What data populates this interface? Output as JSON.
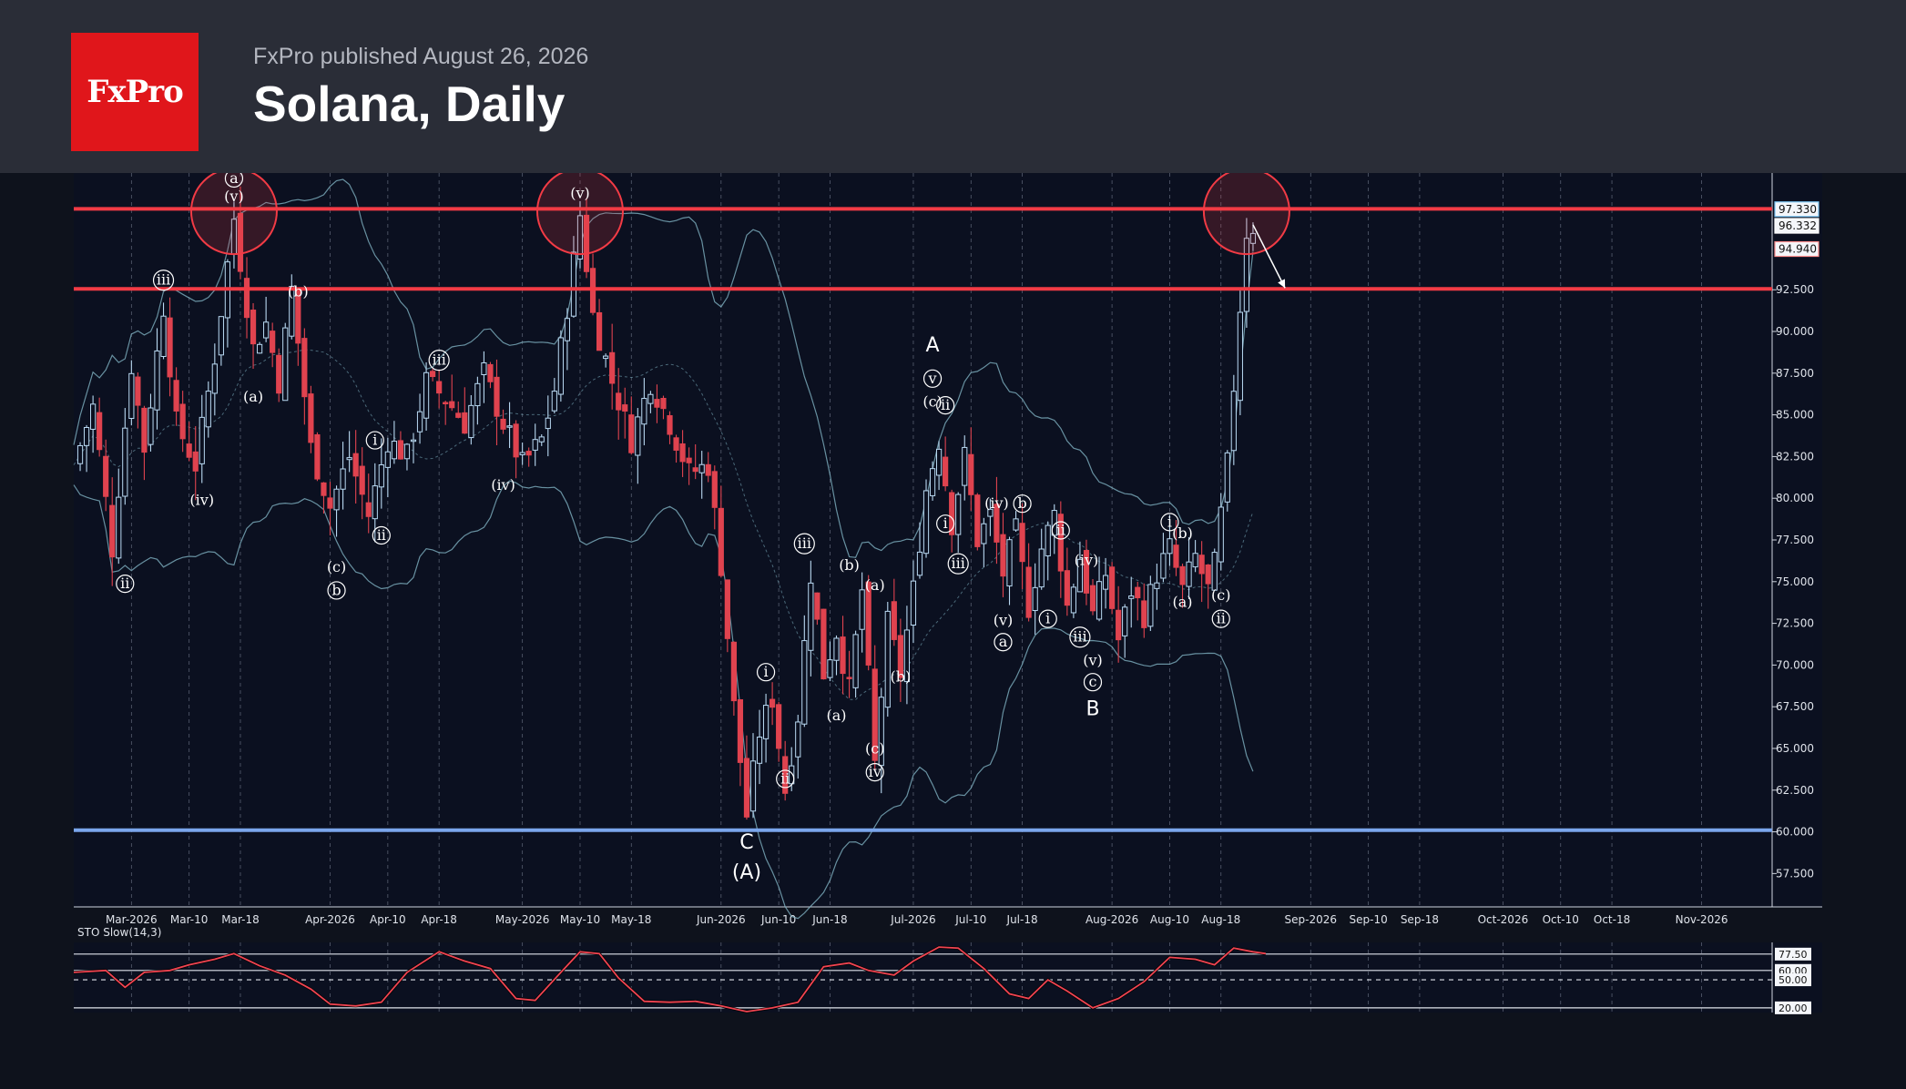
{
  "header": {
    "logo_text": "FxPro",
    "published": "FxPro published August 26, 2026",
    "title": "Solana, Daily"
  },
  "chart_data": [
    {
      "type": "candlestick",
      "title": "Solana, Daily",
      "ylim": [
        55.5,
        99.5
      ],
      "y_ticks": [
        57.5,
        60,
        62.5,
        65,
        67.5,
        70,
        72.5,
        75,
        77.5,
        80,
        82.5,
        85,
        87.5,
        90,
        92.5
      ],
      "x_range": [
        "2026-02-20",
        "2026-11-12"
      ],
      "x_ticks": [
        {
          "date": "2026-03-01",
          "label": "Mar-2026"
        },
        {
          "date": "2026-03-10",
          "label": "Mar-10"
        },
        {
          "date": "2026-03-18",
          "label": "Mar-18"
        },
        {
          "date": "2026-04-01",
          "label": "Apr-2026"
        },
        {
          "date": "2026-04-10",
          "label": "Apr-10"
        },
        {
          "date": "2026-04-18",
          "label": "Apr-18"
        },
        {
          "date": "2026-05-01",
          "label": "May-2026"
        },
        {
          "date": "2026-05-10",
          "label": "May-10"
        },
        {
          "date": "2026-05-18",
          "label": "May-18"
        },
        {
          "date": "2026-06-01",
          "label": "Jun-2026"
        },
        {
          "date": "2026-06-10",
          "label": "Jun-10"
        },
        {
          "date": "2026-06-18",
          "label": "Jun-18"
        },
        {
          "date": "2026-07-01",
          "label": "Jul-2026"
        },
        {
          "date": "2026-07-10",
          "label": "Jul-10"
        },
        {
          "date": "2026-07-18",
          "label": "Jul-18"
        },
        {
          "date": "2026-08-01",
          "label": "Aug-2026"
        },
        {
          "date": "2026-08-10",
          "label": "Aug-10"
        },
        {
          "date": "2026-08-18",
          "label": "Aug-18"
        },
        {
          "date": "2026-09-01",
          "label": "Sep-2026"
        },
        {
          "date": "2026-09-10",
          "label": "Sep-10"
        },
        {
          "date": "2026-09-18",
          "label": "Sep-18"
        },
        {
          "date": "2026-10-01",
          "label": "Oct-2026"
        },
        {
          "date": "2026-10-10",
          "label": "Oct-10"
        },
        {
          "date": "2026-10-18",
          "label": "Oct-18"
        },
        {
          "date": "2026-11-01",
          "label": "Nov-2026"
        }
      ],
      "price_labels": [
        {
          "value": 97.33,
          "text": "97.330",
          "color": "#7ec8f5"
        },
        {
          "value": 96.332,
          "text": "96.332",
          "color": "#ffffff"
        },
        {
          "value": 94.94,
          "text": "94.940",
          "color": "#ff8f8f"
        }
      ],
      "horizontal_levels": [
        {
          "value": 97.35,
          "color": "#f23b45"
        },
        {
          "value": 92.55,
          "color": "#f23b45"
        },
        {
          "value": 60.1,
          "color": "#7aa6ec"
        }
      ],
      "circles": [
        {
          "date": "2026-03-17",
          "value": 97.2
        },
        {
          "date": "2026-05-10",
          "value": 97.2
        },
        {
          "date": "2026-08-22",
          "value": 97.2
        }
      ],
      "arrow": {
        "from": {
          "date": "2026-08-23",
          "value": 96.4
        },
        "to": {
          "date": "2026-08-28",
          "value": 92.6
        }
      },
      "price_path": [
        [
          "2026-02-20",
          82.0
        ],
        [
          "2026-02-23",
          85.5
        ],
        [
          "2026-02-26",
          77.0
        ],
        [
          "2026-03-01",
          88.0
        ],
        [
          "2026-03-03",
          83.0
        ],
        [
          "2026-03-06",
          91.5
        ],
        [
          "2026-03-08",
          84.5
        ],
        [
          "2026-03-11",
          82.0
        ],
        [
          "2026-03-14",
          88.5
        ],
        [
          "2026-03-17",
          96.8
        ],
        [
          "2026-03-20",
          89.0
        ],
        [
          "2026-03-22",
          90.5
        ],
        [
          "2026-03-24",
          87.0
        ],
        [
          "2026-03-26",
          92.5
        ],
        [
          "2026-03-29",
          83.0
        ],
        [
          "2026-04-01",
          79.5
        ],
        [
          "2026-04-04",
          82.5
        ],
        [
          "2026-04-07",
          79.0
        ],
        [
          "2026-04-10",
          83.5
        ],
        [
          "2026-04-13",
          82.5
        ],
        [
          "2026-04-16",
          87.0
        ],
        [
          "2026-04-19",
          86.0
        ],
        [
          "2026-04-22",
          84.5
        ],
        [
          "2026-04-25",
          87.5
        ],
        [
          "2026-04-28",
          84.5
        ],
        [
          "2026-05-01",
          82.0
        ],
        [
          "2026-05-04",
          83.5
        ],
        [
          "2026-05-06",
          86.5
        ],
        [
          "2026-05-08",
          91.5
        ],
        [
          "2026-05-10",
          97.0
        ],
        [
          "2026-05-12",
          91.0
        ],
        [
          "2026-05-15",
          87.0
        ],
        [
          "2026-05-18",
          83.5
        ],
        [
          "2026-05-21",
          87.0
        ],
        [
          "2026-05-24",
          84.5
        ],
        [
          "2026-05-27",
          81.5
        ],
        [
          "2026-05-30",
          82.0
        ],
        [
          "2026-06-01",
          76.0
        ],
        [
          "2026-06-03",
          67.5
        ],
        [
          "2026-06-05",
          61.0
        ],
        [
          "2026-06-07",
          66.0
        ],
        [
          "2026-06-09",
          68.0
        ],
        [
          "2026-06-11",
          62.5
        ],
        [
          "2026-06-13",
          67.0
        ],
        [
          "2026-06-15",
          75.5
        ],
        [
          "2026-06-17",
          69.5
        ],
        [
          "2026-06-19",
          72.0
        ],
        [
          "2026-06-21",
          68.5
        ],
        [
          "2026-06-23",
          74.5
        ],
        [
          "2026-06-25",
          64.0
        ],
        [
          "2026-06-27",
          72.5
        ],
        [
          "2026-06-29",
          69.5
        ],
        [
          "2026-07-01",
          74.5
        ],
        [
          "2026-07-03",
          80.5
        ],
        [
          "2026-07-05",
          83.5
        ],
        [
          "2026-07-07",
          78.5
        ],
        [
          "2026-07-09",
          82.5
        ],
        [
          "2026-07-11",
          77.5
        ],
        [
          "2026-07-13",
          79.0
        ],
        [
          "2026-07-15",
          75.5
        ],
        [
          "2026-07-17",
          78.0
        ],
        [
          "2026-07-19",
          73.5
        ],
        [
          "2026-07-21",
          77.0
        ],
        [
          "2026-07-23",
          79.0
        ],
        [
          "2026-07-25",
          73.5
        ],
        [
          "2026-07-27",
          76.5
        ],
        [
          "2026-07-29",
          73.0
        ],
        [
          "2026-07-31",
          75.5
        ],
        [
          "2026-08-02",
          71.5
        ],
        [
          "2026-08-04",
          74.5
        ],
        [
          "2026-08-06",
          73.0
        ],
        [
          "2026-08-08",
          75.5
        ],
        [
          "2026-08-10",
          77.0
        ],
        [
          "2026-08-12",
          74.5
        ],
        [
          "2026-08-14",
          76.5
        ],
        [
          "2026-08-16",
          74.5
        ],
        [
          "2026-08-17",
          76.0
        ],
        [
          "2026-08-19",
          82.0
        ],
        [
          "2026-08-21",
          91.5
        ],
        [
          "2026-08-22",
          96.0
        ],
        [
          "2026-08-23",
          96.3
        ]
      ],
      "wave_labels": [
        {
          "date": "2026-02-28",
          "value": 74.6,
          "text": "ii",
          "circled": true
        },
        {
          "date": "2026-03-06",
          "value": 92.8,
          "text": "iii",
          "circled": true
        },
        {
          "date": "2026-03-12",
          "value": 79.6,
          "text": "iv",
          "circled": false
        },
        {
          "date": "2026-03-17",
          "value": 97.8,
          "text": "v",
          "circled": false
        },
        {
          "date": "2026-03-17",
          "value": 98.9,
          "text": "a",
          "circled": true
        },
        {
          "date": "2026-03-20",
          "value": 85.8,
          "text": "a",
          "circled": false
        },
        {
          "date": "2026-03-27",
          "value": 92.1,
          "text": "b",
          "circled": false
        },
        {
          "date": "2026-04-02",
          "value": 75.6,
          "text": "c",
          "circled": false
        },
        {
          "date": "2026-04-02",
          "value": 74.2,
          "text": "b",
          "circled": true
        },
        {
          "date": "2026-04-08",
          "value": 83.2,
          "text": "i",
          "circled": true
        },
        {
          "date": "2026-04-09",
          "value": 77.5,
          "text": "ii",
          "circled": true
        },
        {
          "date": "2026-04-18",
          "value": 88.0,
          "text": "iii",
          "circled": true
        },
        {
          "date": "2026-04-28",
          "value": 80.5,
          "text": "iv",
          "circled": false
        },
        {
          "date": "2026-05-10",
          "value": 98.0,
          "text": "v",
          "circled": false
        },
        {
          "date": "2026-07-04",
          "value": 88.8,
          "text": "A",
          "circled": false,
          "big": true
        },
        {
          "date": "2026-07-04",
          "value": 86.9,
          "text": "v",
          "circled": true
        },
        {
          "date": "2026-07-04",
          "value": 85.5,
          "text": "c",
          "circled": false
        },
        {
          "date": "2026-07-06",
          "value": 85.3,
          "text": "ii",
          "circled": true
        },
        {
          "date": "2026-07-06",
          "value": 78.2,
          "text": "i",
          "circled": true
        },
        {
          "date": "2026-07-08",
          "value": 75.8,
          "text": "iii",
          "circled": true
        },
        {
          "date": "2026-07-14",
          "value": 79.4,
          "text": "iv",
          "circled": false
        },
        {
          "date": "2026-07-15",
          "value": 72.4,
          "text": "v",
          "circled": false
        },
        {
          "date": "2026-07-15",
          "value": 71.1,
          "text": "a",
          "circled": true
        },
        {
          "date": "2026-07-18",
          "value": 79.4,
          "text": "b",
          "circled": true
        },
        {
          "date": "2026-07-22",
          "value": 72.5,
          "text": "i",
          "circled": true
        },
        {
          "date": "2026-07-24",
          "value": 77.8,
          "text": "ii",
          "circled": true
        },
        {
          "date": "2026-07-27",
          "value": 71.4,
          "text": "iii",
          "circled": true
        },
        {
          "date": "2026-07-28",
          "value": 76.0,
          "text": "iv",
          "circled": false
        },
        {
          "date": "2026-07-29",
          "value": 70.0,
          "text": "v",
          "circled": false
        },
        {
          "date": "2026-07-29",
          "value": 68.7,
          "text": "c",
          "circled": true
        },
        {
          "date": "2026-07-29",
          "value": 67.0,
          "text": "B",
          "circled": false,
          "big": true
        },
        {
          "date": "2026-08-10",
          "value": 78.3,
          "text": "i",
          "circled": true
        },
        {
          "date": "2026-08-12",
          "value": 77.6,
          "text": "b",
          "circled": false
        },
        {
          "date": "2026-08-12",
          "value": 73.5,
          "text": "a",
          "circled": false
        },
        {
          "date": "2026-08-18",
          "value": 73.9,
          "text": "c",
          "circled": false
        },
        {
          "date": "2026-08-18",
          "value": 72.5,
          "text": "ii",
          "circled": true
        },
        {
          "date": "2026-06-05",
          "value": 59.0,
          "text": "C",
          "circled": false,
          "big": true
        },
        {
          "date": "2026-06-05",
          "value": 57.2,
          "text": "(A)",
          "circled": false,
          "big": true
        },
        {
          "date": "2026-06-08",
          "value": 69.3,
          "text": "i",
          "circled": true
        },
        {
          "date": "2026-06-11",
          "value": 62.9,
          "text": "ii",
          "circled": true
        },
        {
          "date": "2026-06-14",
          "value": 77.0,
          "text": "iii",
          "circled": true
        },
        {
          "date": "2026-06-21",
          "value": 75.7,
          "text": "b",
          "circled": false
        },
        {
          "date": "2026-06-19",
          "value": 66.7,
          "text": "a",
          "circled": false
        },
        {
          "date": "2026-06-25",
          "value": 74.5,
          "text": "a",
          "circled": false
        },
        {
          "date": "2026-06-29",
          "value": 69.0,
          "text": "b",
          "circled": false
        },
        {
          "date": "2026-06-25",
          "value": 64.7,
          "text": "c",
          "circled": false
        },
        {
          "date": "2026-06-25",
          "value": 63.3,
          "text": "iv",
          "circled": true
        }
      ]
    },
    {
      "type": "line",
      "title": "STO Slow(14,3)",
      "ylim": [
        15,
        90
      ],
      "y_ticks": [
        {
          "value": 77.5,
          "text": "77.50"
        },
        {
          "value": 60,
          "text": "60.00"
        },
        {
          "value": 50,
          "text": "50.00"
        },
        {
          "value": 20,
          "text": "20.00"
        }
      ],
      "series": [
        {
          "color": "#f04452",
          "values": [
            [
              "2026-02-20",
              58
            ],
            [
              "2026-02-25",
              60
            ],
            [
              "2026-02-28",
              42
            ],
            [
              "2026-03-03",
              58
            ],
            [
              "2026-03-07",
              60
            ],
            [
              "2026-03-10",
              66
            ],
            [
              "2026-03-14",
              72
            ],
            [
              "2026-03-17",
              78
            ],
            [
              "2026-03-21",
              65
            ],
            [
              "2026-03-25",
              55
            ],
            [
              "2026-03-29",
              40
            ],
            [
              "2026-04-01",
              24
            ],
            [
              "2026-04-05",
              22
            ],
            [
              "2026-04-09",
              26
            ],
            [
              "2026-04-13",
              58
            ],
            [
              "2026-04-18",
              80
            ],
            [
              "2026-04-22",
              70
            ],
            [
              "2026-04-26",
              62
            ],
            [
              "2026-04-30",
              30
            ],
            [
              "2026-05-03",
              28
            ],
            [
              "2026-05-07",
              58
            ],
            [
              "2026-05-10",
              80
            ],
            [
              "2026-05-13",
              78
            ],
            [
              "2026-05-16",
              52
            ],
            [
              "2026-05-20",
              27
            ],
            [
              "2026-05-24",
              26
            ],
            [
              "2026-05-28",
              27
            ],
            [
              "2026-06-01",
              22
            ],
            [
              "2026-06-05",
              16
            ],
            [
              "2026-06-09",
              20
            ],
            [
              "2026-06-13",
              26
            ],
            [
              "2026-06-17",
              64
            ],
            [
              "2026-06-21",
              68
            ],
            [
              "2026-06-24",
              60
            ],
            [
              "2026-06-28",
              55
            ],
            [
              "2026-07-01",
              70
            ],
            [
              "2026-07-05",
              85
            ],
            [
              "2026-07-08",
              84
            ],
            [
              "2026-07-12",
              62
            ],
            [
              "2026-07-16",
              35
            ],
            [
              "2026-07-19",
              30
            ],
            [
              "2026-07-22",
              50
            ],
            [
              "2026-07-25",
              38
            ],
            [
              "2026-07-29",
              20
            ],
            [
              "2026-08-02",
              30
            ],
            [
              "2026-08-06",
              48
            ],
            [
              "2026-08-10",
              74
            ],
            [
              "2026-08-14",
              72
            ],
            [
              "2026-08-17",
              66
            ],
            [
              "2026-08-20",
              84
            ],
            [
              "2026-08-23",
              80
            ],
            [
              "2026-08-25",
              78
            ]
          ]
        }
      ]
    }
  ]
}
